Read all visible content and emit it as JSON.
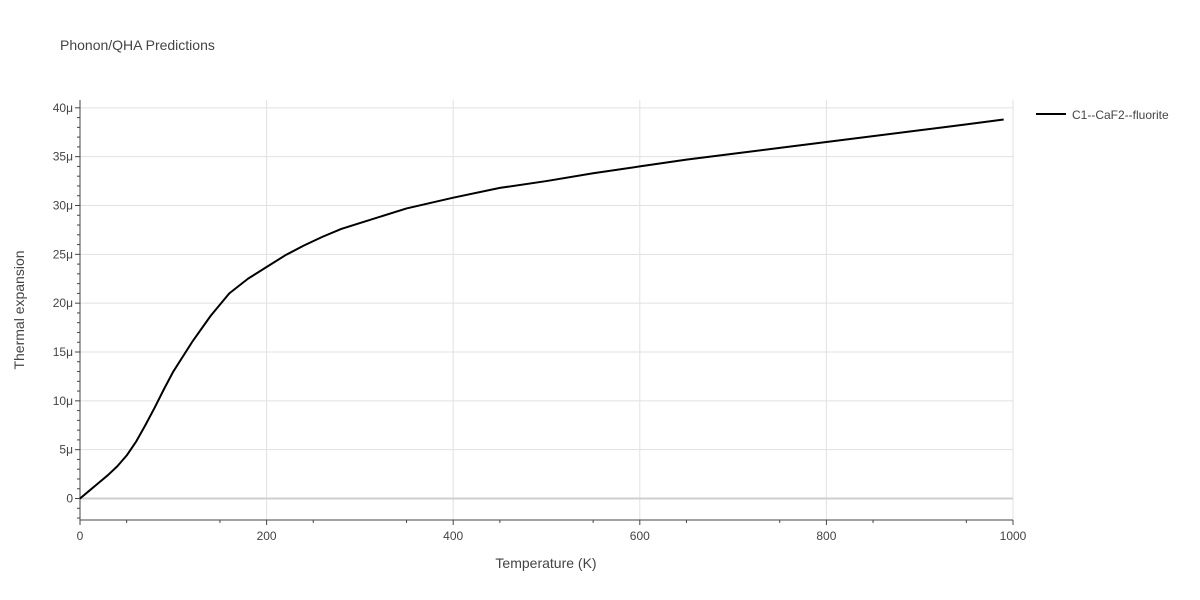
{
  "chart_data": {
    "type": "line",
    "title": "Phonon/QHA Predictions",
    "xlabel": "Temperature (K)",
    "ylabel": "Thermal expansion",
    "xlim": [
      0,
      1000
    ],
    "ylim": [
      -2.2e-06,
      4.08e-05
    ],
    "x_ticks": [
      0,
      200,
      400,
      600,
      800,
      1000
    ],
    "x_tick_labels": [
      "0",
      "200",
      "400",
      "600",
      "800",
      "1000"
    ],
    "y_ticks": [
      0,
      5e-06,
      1e-05,
      1.5e-05,
      2e-05,
      2.5e-05,
      3e-05,
      3.5e-05,
      4e-05
    ],
    "y_tick_labels": [
      "0",
      "5μ",
      "10μ",
      "15μ",
      "20μ",
      "25μ",
      "30μ",
      "35μ",
      "40μ"
    ],
    "grid": true,
    "legend_position": "top-right",
    "series": [
      {
        "name": "C1--CaF2--fluorite",
        "color": "#000000",
        "x": [
          0,
          10,
          20,
          30,
          40,
          50,
          60,
          70,
          80,
          90,
          100,
          120,
          140,
          160,
          180,
          200,
          220,
          240,
          260,
          280,
          300,
          350,
          400,
          450,
          500,
          550,
          600,
          650,
          700,
          750,
          800,
          850,
          900,
          950,
          990
        ],
        "y": [
          0,
          8e-07,
          1.6e-06,
          2.4e-06,
          3.3e-06,
          4.4e-06,
          5.8e-06,
          7.5e-06,
          9.3e-06,
          1.12e-05,
          1.3e-05,
          1.6e-05,
          1.87e-05,
          2.1e-05,
          2.25e-05,
          2.37e-05,
          2.49e-05,
          2.59e-05,
          2.68e-05,
          2.76e-05,
          2.82e-05,
          2.97e-05,
          3.08e-05,
          3.18e-05,
          3.25e-05,
          3.33e-05,
          3.4e-05,
          3.47e-05,
          3.53e-05,
          3.59e-05,
          3.65e-05,
          3.71e-05,
          3.77e-05,
          3.83e-05,
          3.88e-05
        ]
      }
    ]
  }
}
